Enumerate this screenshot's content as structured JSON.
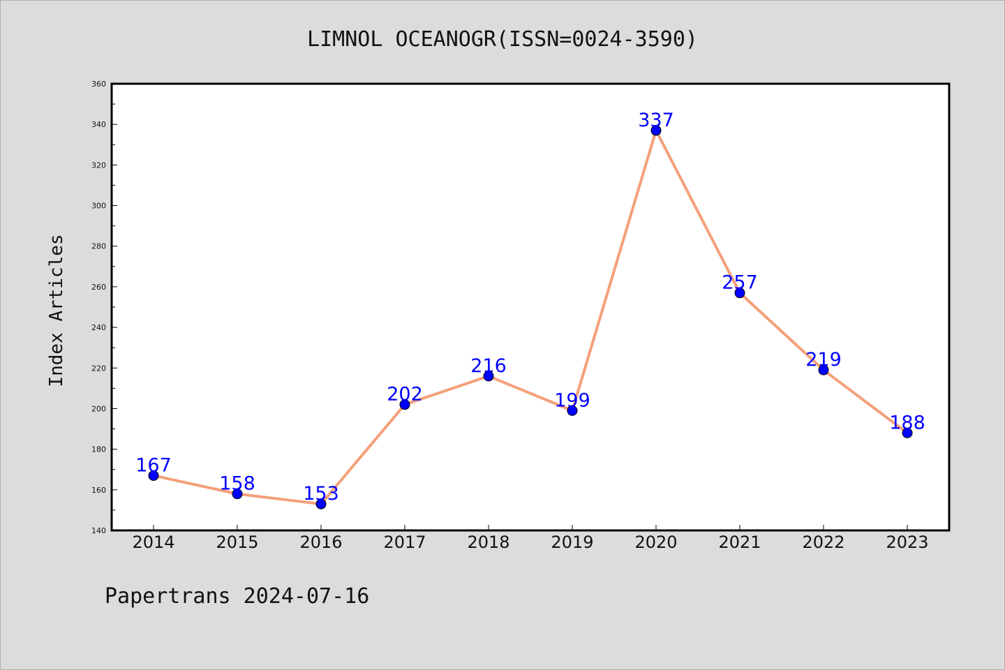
{
  "chart_data": {
    "type": "line",
    "title": "LIMNOL OCEANOGR(ISSN=0024-3590)",
    "ylabel": "Index Articles",
    "xlabel": "",
    "footer": "Papertrans 2024-07-16",
    "x": [
      "2014",
      "2015",
      "2016",
      "2017",
      "2018",
      "2019",
      "2020",
      "2021",
      "2022",
      "2023"
    ],
    "values": [
      167,
      158,
      153,
      202,
      216,
      199,
      337,
      257,
      219,
      188
    ],
    "ylim": [
      140,
      360
    ],
    "yticks": [
      140,
      160,
      180,
      200,
      220,
      240,
      260,
      280,
      300,
      320,
      340,
      360
    ],
    "grid": false,
    "line_color": "#f4a07a",
    "marker_color": "#0000ff",
    "label_color": "#0000ff",
    "background_color": "#dcdcdc",
    "plot_background": "#ffffff"
  }
}
